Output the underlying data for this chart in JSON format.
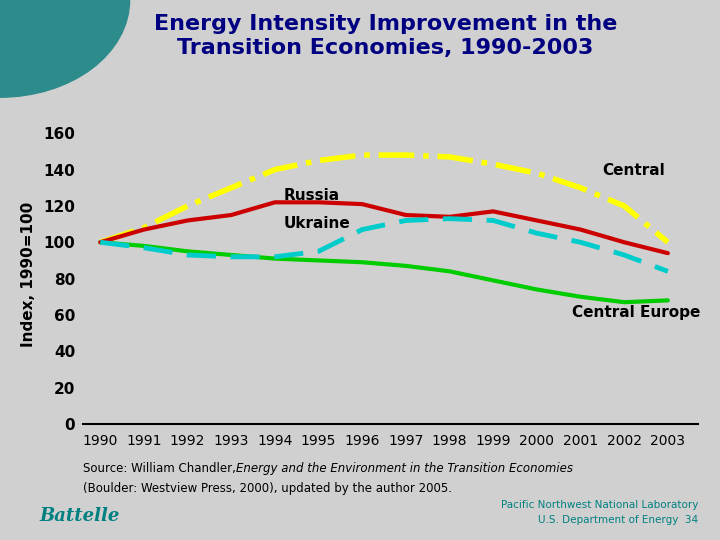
{
  "title": "Energy Intensity Improvement in the\nTransition Economies, 1990-2003",
  "ylabel": "Index, 1990=100",
  "years": [
    1990,
    1991,
    1992,
    1993,
    1994,
    1995,
    1996,
    1997,
    1998,
    1999,
    2000,
    2001,
    2002,
    2003
  ],
  "russia": [
    100,
    107,
    112,
    115,
    122,
    122,
    121,
    115,
    114,
    117,
    112,
    107,
    100,
    94
  ],
  "ukraine": [
    100,
    97,
    93,
    92,
    92,
    95,
    107,
    112,
    113,
    112,
    105,
    100,
    93,
    84
  ],
  "central": [
    100,
    108,
    120,
    130,
    140,
    145,
    148,
    148,
    147,
    143,
    138,
    130,
    120,
    100
  ],
  "central_europe": [
    100,
    98,
    95,
    93,
    91,
    90,
    89,
    87,
    84,
    79,
    74,
    70,
    67,
    68
  ],
  "russia_color": "#cc0000",
  "ukraine_color": "#00cccc",
  "central_color": "#ffff00",
  "central_europe_color": "#00cc00",
  "background_color": "#d0d0d0",
  "title_color": "#000080",
  "ylim": [
    0,
    165
  ],
  "yticks": [
    0,
    20,
    40,
    60,
    80,
    100,
    120,
    140,
    160
  ],
  "russia_label": "Russia",
  "ukraine_label": "Ukraine",
  "central_label": "Central",
  "central_europe_label": "Central Europe",
  "battelle_text": "Battelle",
  "page_num": "34"
}
